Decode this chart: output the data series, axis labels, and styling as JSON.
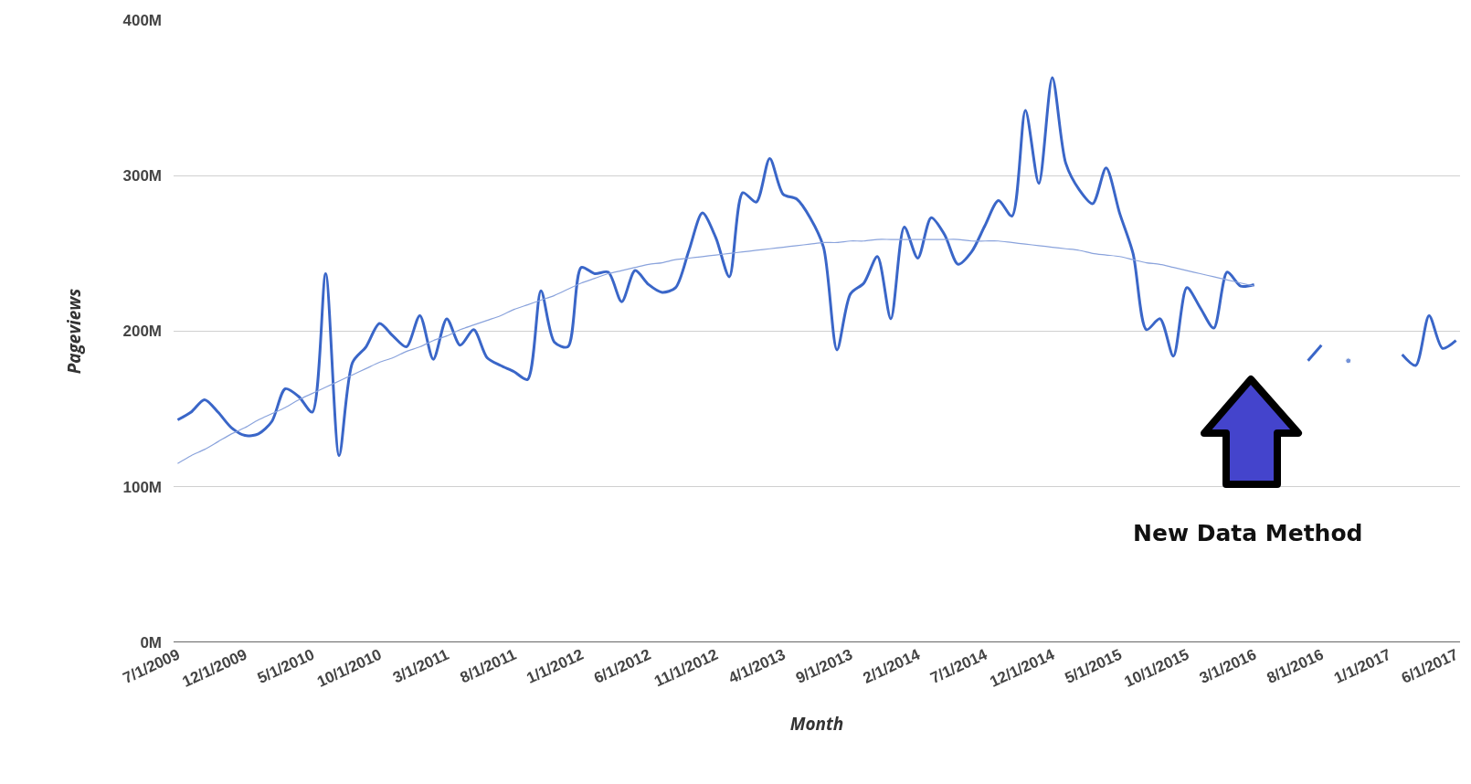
{
  "chart_data": {
    "type": "line",
    "xlabel": "Month",
    "ylabel": "Pageviews",
    "categories": [
      "7/1/2009",
      null,
      null,
      null,
      null,
      "12/1/2009",
      null,
      null,
      null,
      null,
      "5/1/2010",
      null,
      null,
      null,
      null,
      "10/1/2010",
      null,
      null,
      null,
      null,
      "3/1/2011",
      null,
      null,
      null,
      null,
      "8/1/2011",
      null,
      null,
      null,
      null,
      "1/1/2012",
      null,
      null,
      null,
      null,
      "6/1/2012",
      null,
      null,
      null,
      null,
      "11/1/2012",
      null,
      null,
      null,
      null,
      "4/1/2013",
      null,
      null,
      null,
      null,
      "9/1/2013",
      null,
      null,
      null,
      null,
      "2/1/2014",
      null,
      null,
      null,
      null,
      "7/1/2014",
      null,
      null,
      null,
      null,
      "12/1/2014",
      null,
      null,
      null,
      null,
      "5/1/2015",
      null,
      null,
      null,
      null,
      "10/1/2015",
      null,
      null,
      null,
      null,
      "3/1/2016",
      null,
      null,
      null,
      null,
      "8/1/2016",
      null,
      null,
      null,
      null,
      "1/1/2017",
      null,
      null,
      null,
      null,
      "6/1/2017"
    ],
    "series": [
      {
        "color": "#3a66c8",
        "values": [
          143,
          148,
          156,
          148,
          138,
          133,
          134,
          142,
          163,
          158,
          148,
          237,
          120,
          180,
          190,
          205,
          197,
          190,
          210,
          182,
          208,
          191,
          201,
          183,
          178,
          174,
          169,
          226,
          193,
          190,
          241,
          237,
          238,
          219,
          239,
          230,
          225,
          228,
          252,
          276,
          260,
          235,
          289,
          283,
          311,
          288,
          285,
          273,
          254,
          188,
          224,
          231,
          248,
          208,
          267,
          247,
          273,
          262,
          243,
          251,
          268,
          284,
          274,
          342,
          295,
          363,
          308,
          291,
          282,
          305,
          276,
          250,
          201,
          208,
          184,
          228,
          215,
          202,
          238,
          229,
          230,
          null,
          null,
          null,
          181,
          191,
          null,
          181,
          null,
          null,
          null,
          185,
          178,
          210,
          189,
          194
        ]
      },
      {
        "type": "line",
        "color": "#8aa3dc",
        "values": [
          115,
          120,
          124,
          129,
          134,
          138,
          143,
          147,
          151,
          156,
          160,
          164,
          168,
          172,
          176,
          180,
          183,
          187,
          190,
          194,
          197,
          201,
          204,
          207,
          210,
          214,
          217,
          220,
          223,
          227,
          231,
          234,
          237,
          239,
          241,
          243,
          244,
          246,
          247,
          248,
          249,
          250,
          251,
          252,
          253,
          254,
          255,
          256,
          257,
          257,
          258,
          258,
          259,
          259,
          259,
          259,
          259,
          259,
          259,
          258,
          258,
          258,
          257,
          256,
          255,
          254,
          253,
          252,
          250,
          249,
          248,
          246,
          244,
          243,
          241,
          239,
          237,
          235,
          233,
          231,
          229,
          null,
          null,
          null,
          null,
          null,
          null,
          null,
          null,
          null,
          null,
          null,
          null,
          null,
          null,
          null
        ]
      }
    ],
    "ylim": [
      0,
      400
    ],
    "yticks": [
      {
        "value": 0,
        "label": "0M"
      },
      {
        "value": 100,
        "label": "100M"
      },
      {
        "value": 200,
        "label": "200M"
      },
      {
        "value": 300,
        "label": "300M"
      },
      {
        "value": 400,
        "label": "400M"
      }
    ],
    "grid": "y",
    "annotations": [
      "New Data Method"
    ]
  }
}
